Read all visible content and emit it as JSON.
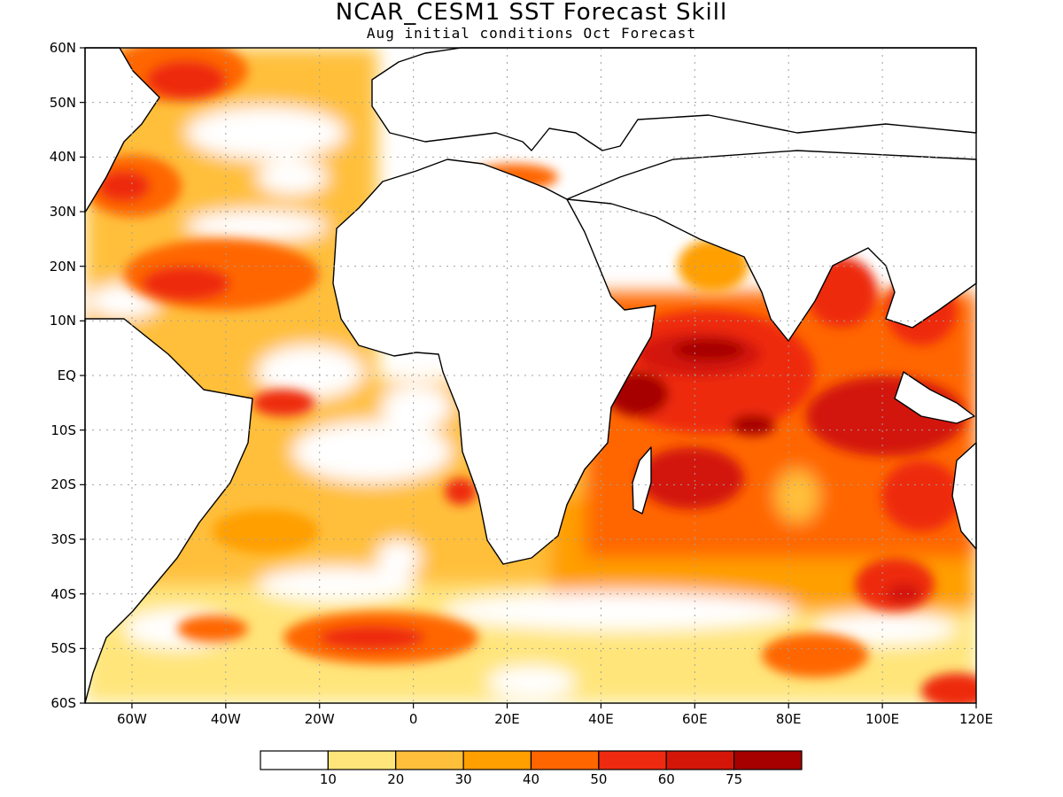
{
  "title": "NCAR_CESM1 SST Forecast Skill",
  "subtitle": "Aug initial conditions  Oct Forecast",
  "map": {
    "lon_range": [
      -70,
      120
    ],
    "lat_range": [
      -60,
      60
    ],
    "lat_labels": [
      "60N",
      "50N",
      "40N",
      "30N",
      "20N",
      "10N",
      "EQ",
      "10S",
      "20S",
      "30S",
      "40S",
      "50S",
      "60S"
    ],
    "lon_labels": [
      "60W",
      "40W",
      "20W",
      "0",
      "20E",
      "40E",
      "60E",
      "80E",
      "100E",
      "120E"
    ],
    "lat_values": [
      60,
      50,
      40,
      30,
      20,
      10,
      0,
      -10,
      -20,
      -30,
      -40,
      -50,
      -60
    ],
    "lon_values": [
      -60,
      -40,
      -20,
      0,
      20,
      40,
      60,
      80,
      100,
      120
    ],
    "gridlines": true
  },
  "colorbar": {
    "labels": [
      "10",
      "20",
      "30",
      "40",
      "50",
      "60",
      "75"
    ],
    "colors": [
      "#ffffff",
      "#ffe57a",
      "#ffbf3a",
      "#ff9f00",
      "#ff6600",
      "#ee2a10",
      "#d31608",
      "#a60000"
    ]
  }
}
